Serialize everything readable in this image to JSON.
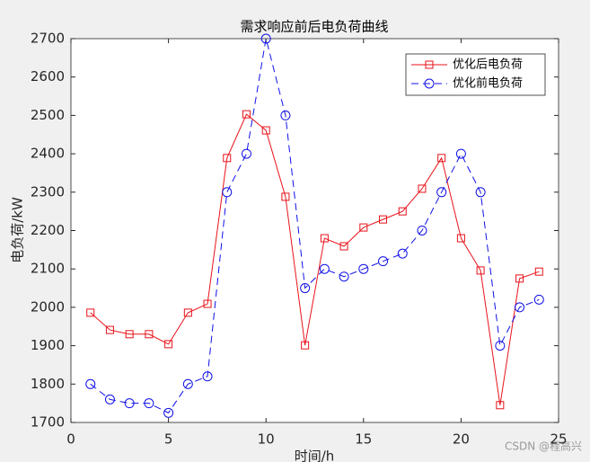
{
  "chart_data": {
    "type": "line",
    "title": "需求响应前后电负荷曲线",
    "x_label": "时间/h",
    "y_label": "电负荷/kW",
    "x": [
      1,
      2,
      3,
      4,
      5,
      6,
      7,
      8,
      9,
      10,
      11,
      12,
      13,
      14,
      15,
      16,
      17,
      18,
      19,
      20,
      21,
      22,
      23,
      24
    ],
    "series": [
      {
        "name": "优化后电负荷",
        "color": "#e8121a",
        "line_style": "solid",
        "marker": "square",
        "values": [
          1986,
          1941,
          1930,
          1930,
          1904,
          1986,
          2009,
          2389,
          2503,
          2461,
          2288,
          1901,
          2180,
          2159,
          2208,
          2229,
          2250,
          2309,
          2389,
          2180,
          2096,
          1745,
          2075,
          2093
        ]
      },
      {
        "name": "优化前电负荷",
        "color": "#1010e8",
        "line_style": "dashed",
        "marker": "circle",
        "values": [
          1800,
          1760,
          1750,
          1750,
          1725,
          1800,
          1820,
          2300,
          2400,
          2700,
          2500,
          2050,
          2100,
          2080,
          2100,
          2120,
          2140,
          2200,
          2300,
          2400,
          2300,
          1900,
          2000,
          2020
        ]
      }
    ],
    "xlim": [
      0,
      25
    ],
    "xticks": [
      0,
      5,
      10,
      15,
      20,
      25
    ],
    "ylim": [
      1700,
      2700
    ],
    "yticks": [
      1700,
      1800,
      1900,
      2000,
      2100,
      2200,
      2300,
      2400,
      2500,
      2600,
      2700
    ],
    "legend": "northeast",
    "watermark": "CSDN @程高兴"
  }
}
